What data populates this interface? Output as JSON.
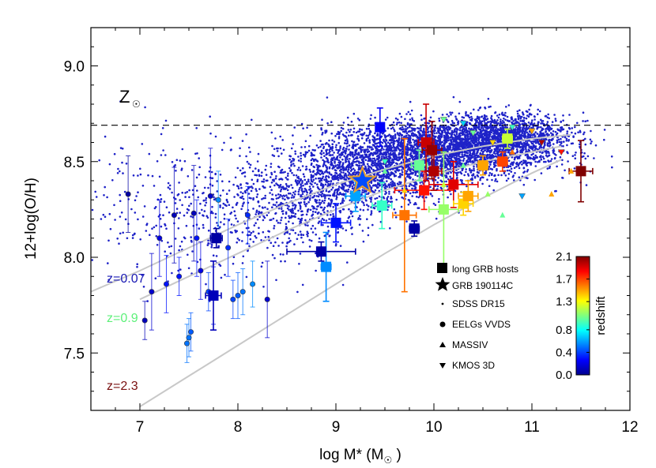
{
  "chart_data": {
    "type": "scatter",
    "title": "",
    "xlabel": "log M* (M",
    "xlabel_sub": "☉",
    "xlabel_close": " )",
    "ylabel": "12+log(O/H)",
    "xlim": [
      6.5,
      12.0
    ],
    "ylim": [
      7.2,
      9.2
    ],
    "xticks": [
      7,
      8,
      9,
      10,
      11,
      12
    ],
    "yticks": [
      7.5,
      8.0,
      8.5,
      9.0
    ],
    "solar_line": {
      "y": 8.69,
      "label_main": "Z",
      "label_sub": "☉"
    },
    "redshift_labels": [
      {
        "text": "z=0.07",
        "color": "#1a1ab4",
        "x": 6.55,
        "y": 7.86
      },
      {
        "text": "z=0.9",
        "color": "#5ef07a",
        "x": 6.55,
        "y": 7.66
      },
      {
        "text": "z=2.3",
        "color": "#7a1010",
        "x": 6.55,
        "y": 7.31
      }
    ],
    "relations": [
      {
        "name": "",
        "x": [
          6.5,
          7.0,
          7.5,
          8.0,
          8.5,
          9.0,
          9.5,
          10.0,
          10.5,
          11.0,
          11.4
        ],
        "y": [
          7.82,
          7.93,
          8.05,
          8.17,
          8.28,
          8.38,
          8.46,
          8.53,
          8.58,
          8.62,
          8.64
        ]
      },
      {
        "name": "",
        "x": [
          7.0,
          7.5,
          8.0,
          8.5,
          9.0,
          9.5,
          10.0,
          10.5,
          11.0,
          11.3
        ],
        "y": [
          7.78,
          7.9,
          8.02,
          8.14,
          8.25,
          8.35,
          8.43,
          8.5,
          8.55,
          8.58
        ]
      },
      {
        "name": "",
        "x": [
          7.0,
          7.5,
          8.0,
          8.5,
          9.0,
          9.5,
          10.0,
          10.5,
          11.0,
          11.3
        ],
        "y": [
          7.22,
          7.38,
          7.54,
          7.7,
          7.86,
          8.02,
          8.17,
          8.31,
          8.44,
          8.51
        ]
      }
    ],
    "sdss_density": [
      {
        "x": 10.0,
        "y": 8.55,
        "sx": 0.55,
        "sy": 0.08,
        "n": 2600
      },
      {
        "x": 10.7,
        "y": 8.63,
        "sx": 0.35,
        "sy": 0.06,
        "n": 1500
      },
      {
        "x": 9.3,
        "y": 8.42,
        "sx": 0.4,
        "sy": 0.09,
        "n": 1200
      },
      {
        "x": 8.6,
        "y": 8.28,
        "sx": 0.35,
        "sy": 0.11,
        "n": 500
      },
      {
        "x": 7.8,
        "y": 8.24,
        "sx": 0.55,
        "sy": 0.17,
        "n": 350
      },
      {
        "x": 6.9,
        "y": 8.3,
        "sx": 0.4,
        "sy": 0.2,
        "n": 120
      }
    ],
    "grb_hosts": [
      {
        "x": 7.75,
        "y": 7.8,
        "z": 0.1,
        "xerr": 0.08,
        "yerr": 0.18
      },
      {
        "x": 7.78,
        "y": 8.1,
        "z": 0.05,
        "xerr": 0.06,
        "yerr": 0.05
      },
      {
        "x": 8.85,
        "y": 8.03,
        "z": 0.06,
        "xerr": 0.35,
        "yerr": 0.05
      },
      {
        "x": 8.9,
        "y": 7.95,
        "z": 0.55,
        "xerr": 0.05,
        "yerr": 0.18
      },
      {
        "x": 9.0,
        "y": 8.18,
        "z": 0.3,
        "xerr": 0.15,
        "yerr": 0.1
      },
      {
        "x": 9.2,
        "y": 8.32,
        "z": 0.6,
        "xerr": 0.1,
        "yerr": 0.08
      },
      {
        "x": 9.45,
        "y": 8.68,
        "z": 0.25,
        "xerr": 0.03,
        "yerr": 0.1
      },
      {
        "x": 9.47,
        "y": 8.27,
        "z": 0.9,
        "xerr": 0.1,
        "yerr": 0.12
      },
      {
        "x": 9.7,
        "y": 8.22,
        "z": 1.6,
        "xerr": 0.12,
        "yerr": 0.4
      },
      {
        "x": 9.8,
        "y": 8.15,
        "z": 0.05,
        "xerr": 0.05,
        "yerr": 0.04
      },
      {
        "x": 9.85,
        "y": 8.48,
        "z": 1.0,
        "xerr": 0.08,
        "yerr": 0.08
      },
      {
        "x": 9.9,
        "y": 8.35,
        "z": 1.8,
        "xerr": 0.3,
        "yerr": 0.1
      },
      {
        "x": 9.92,
        "y": 8.6,
        "z": 1.95,
        "xerr": 0.08,
        "yerr": 0.2
      },
      {
        "x": 9.98,
        "y": 8.56,
        "z": 2.05,
        "xerr": 0.1,
        "yerr": 0.15
      },
      {
        "x": 10.0,
        "y": 8.45,
        "z": 2.0,
        "xerr": 0.08,
        "yerr": 0.1
      },
      {
        "x": 10.1,
        "y": 8.25,
        "z": 1.1,
        "xerr": 0.15,
        "yerr": 0.3
      },
      {
        "x": 10.2,
        "y": 8.38,
        "z": 1.9,
        "xerr": 0.25,
        "yerr": 0.12
      },
      {
        "x": 10.3,
        "y": 8.28,
        "z": 1.4,
        "xerr": 0.1,
        "yerr": 0.06
      },
      {
        "x": 10.35,
        "y": 8.32,
        "z": 1.5,
        "xerr": 0.1,
        "yerr": 0.08
      },
      {
        "x": 10.5,
        "y": 8.48,
        "z": 1.5,
        "xerr": 0.05,
        "yerr": 0.05
      },
      {
        "x": 10.7,
        "y": 8.5,
        "z": 1.7,
        "xerr": 0.05,
        "yerr": 0.05
      },
      {
        "x": 10.75,
        "y": 8.62,
        "z": 1.2,
        "xerr": 0.05,
        "yerr": 0.05
      },
      {
        "x": 11.5,
        "y": 8.45,
        "z": 2.2,
        "xerr": 0.12,
        "yerr": 0.16
      }
    ],
    "grb_190114c": {
      "x": 9.27,
      "y": 8.4,
      "z": 0.42
    },
    "eelgs": [
      {
        "x": 6.88,
        "y": 8.33,
        "z": 0.05,
        "yerr": 0.2
      },
      {
        "x": 7.05,
        "y": 7.67,
        "z": 0.1,
        "yerr": 0.1
      },
      {
        "x": 7.12,
        "y": 7.82,
        "z": 0.15,
        "yerr": 0.2
      },
      {
        "x": 7.2,
        "y": 8.1,
        "z": 0.2,
        "yerr": 0.2
      },
      {
        "x": 7.27,
        "y": 7.86,
        "z": 0.3,
        "yerr": 0.15
      },
      {
        "x": 7.35,
        "y": 8.22,
        "z": 0.1,
        "yerr": 0.25
      },
      {
        "x": 7.4,
        "y": 7.9,
        "z": 0.3,
        "yerr": 0.1
      },
      {
        "x": 7.48,
        "y": 7.55,
        "z": 0.5,
        "yerr": 0.1
      },
      {
        "x": 7.5,
        "y": 7.58,
        "z": 0.5,
        "yerr": 0.1
      },
      {
        "x": 7.52,
        "y": 7.61,
        "z": 0.45,
        "yerr": 0.1
      },
      {
        "x": 7.55,
        "y": 8.23,
        "z": 0.1,
        "yerr": 0.25
      },
      {
        "x": 7.58,
        "y": 8.1,
        "z": 0.3,
        "yerr": 0.2
      },
      {
        "x": 7.62,
        "y": 7.93,
        "z": 0.2,
        "yerr": 0.15
      },
      {
        "x": 7.7,
        "y": 7.82,
        "z": 0.4,
        "yerr": 0.1
      },
      {
        "x": 7.72,
        "y": 8.32,
        "z": 0.15,
        "yerr": 0.25
      },
      {
        "x": 7.75,
        "y": 7.8,
        "z": 0.3,
        "yerr": 0.15
      },
      {
        "x": 7.8,
        "y": 8.3,
        "z": 0.55,
        "yerr": 0.15
      },
      {
        "x": 7.9,
        "y": 8.05,
        "z": 0.35,
        "yerr": 0.15
      },
      {
        "x": 7.95,
        "y": 7.78,
        "z": 0.4,
        "yerr": 0.1
      },
      {
        "x": 8.0,
        "y": 7.8,
        "z": 0.45,
        "yerr": 0.12
      },
      {
        "x": 8.05,
        "y": 7.82,
        "z": 0.5,
        "yerr": 0.12
      },
      {
        "x": 8.1,
        "y": 8.22,
        "z": 0.35,
        "yerr": 0.15
      },
      {
        "x": 8.15,
        "y": 7.86,
        "z": 0.55,
        "yerr": 0.12
      },
      {
        "x": 8.3,
        "y": 7.78,
        "z": 0.15,
        "yerr": 0.2
      }
    ],
    "massiv": [
      {
        "x": 9.5,
        "y": 8.45,
        "z": 1.0
      },
      {
        "x": 9.7,
        "y": 8.35,
        "z": 1.4
      },
      {
        "x": 10.1,
        "y": 8.38,
        "z": 1.2
      },
      {
        "x": 10.3,
        "y": 8.48,
        "z": 1.0
      },
      {
        "x": 10.55,
        "y": 8.33,
        "z": 1.1
      },
      {
        "x": 10.7,
        "y": 8.22,
        "z": 1.0
      },
      {
        "x": 11.2,
        "y": 8.33,
        "z": 1.5
      },
      {
        "x": 11.4,
        "y": 8.45,
        "z": 1.5
      },
      {
        "x": 10.8,
        "y": 8.55,
        "z": 1.6
      }
    ],
    "kmos3d": [
      {
        "x": 10.4,
        "y": 8.65,
        "z": 1.0
      },
      {
        "x": 10.6,
        "y": 8.6,
        "z": 1.4
      },
      {
        "x": 10.8,
        "y": 8.68,
        "z": 0.9
      },
      {
        "x": 11.0,
        "y": 8.66,
        "z": 1.5
      },
      {
        "x": 11.1,
        "y": 8.6,
        "z": 2.0
      },
      {
        "x": 11.3,
        "y": 8.55,
        "z": 1.8
      },
      {
        "x": 10.9,
        "y": 8.32,
        "z": 0.6
      },
      {
        "x": 10.3,
        "y": 8.7,
        "z": 0.7
      },
      {
        "x": 10.1,
        "y": 8.72,
        "z": 1.0
      },
      {
        "x": 9.5,
        "y": 8.5,
        "z": 0.9
      }
    ],
    "legend": {
      "entries": [
        {
          "marker": "square",
          "label": "long GRB hosts"
        },
        {
          "marker": "star",
          "label": "GRB 190114C"
        },
        {
          "marker": "dot",
          "label": "SDSS DR15"
        },
        {
          "marker": "circle",
          "label": "EELGs VVDS"
        },
        {
          "marker": "triangle-up",
          "label": "MASSIV"
        },
        {
          "marker": "triangle-down",
          "label": "KMOS 3D"
        }
      ],
      "position": "bottom-right"
    },
    "colorbar": {
      "label": "redshift",
      "ticks": [
        "0.0",
        "0.4",
        "0.8",
        "1.3",
        "1.7",
        "2.1"
      ],
      "range": [
        0.0,
        2.1
      ],
      "colormap": [
        "#00008f",
        "#0000ff",
        "#007fff",
        "#00ffff",
        "#7fff7f",
        "#ffff00",
        "#ff7f00",
        "#ff0000",
        "#800000"
      ]
    }
  }
}
